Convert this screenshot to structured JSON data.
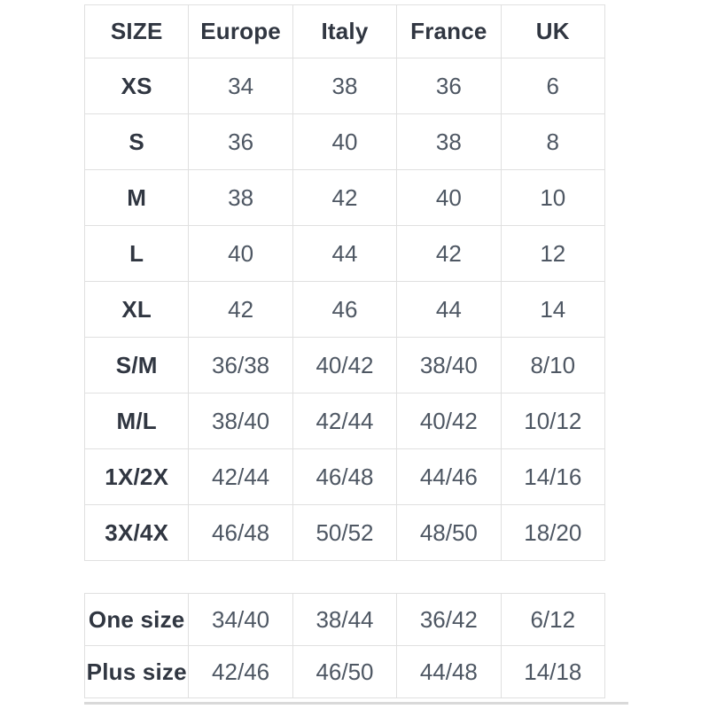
{
  "chart_data": [
    {
      "type": "table",
      "columns": [
        "SIZE",
        "Europe",
        "Italy",
        "France",
        "UK"
      ],
      "rows": [
        [
          "XS",
          "34",
          "38",
          "36",
          "6"
        ],
        [
          "S",
          "36",
          "40",
          "38",
          "8"
        ],
        [
          "M",
          "38",
          "42",
          "40",
          "10"
        ],
        [
          "L",
          "40",
          "44",
          "42",
          "12"
        ],
        [
          "XL",
          "42",
          "46",
          "44",
          "14"
        ],
        [
          "S/M",
          "36/38",
          "40/42",
          "38/40",
          "8/10"
        ],
        [
          "M/L",
          "38/40",
          "42/44",
          "40/42",
          "10/12"
        ],
        [
          "1X/2X",
          "42/44",
          "46/48",
          "44/46",
          "14/16"
        ],
        [
          "3X/4X",
          "46/48",
          "50/52",
          "48/50",
          "18/20"
        ]
      ],
      "layout_hints": {
        "grid": "on",
        "header_row": true,
        "bold_first_column": true
      }
    },
    {
      "type": "table",
      "columns": [],
      "rows": [
        [
          "One size",
          "34/40",
          "38/44",
          "36/42",
          "6/12"
        ],
        [
          "Plus size",
          "42/46",
          "46/50",
          "44/48",
          "14/18"
        ]
      ],
      "layout_hints": {
        "grid": "on",
        "header_row": false,
        "bold_first_column": true
      }
    }
  ],
  "colors": {
    "border": "#e0e0e0",
    "header_text": "#303641",
    "value_text": "#4e5763",
    "background": "#ffffff",
    "bottom_bar": "#d9d9d9"
  }
}
